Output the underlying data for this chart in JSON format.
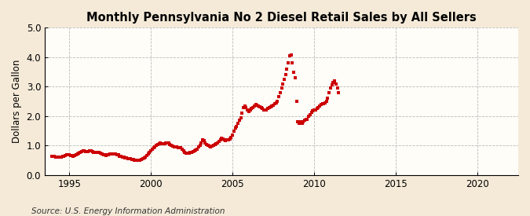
{
  "title": "Monthly Pennsylvania No 2 Diesel Retail Sales by All Sellers",
  "ylabel": "Dollars per Gallon",
  "source": "Source: U.S. Energy Information Administration",
  "xlim": [
    1993.5,
    2022.5
  ],
  "ylim": [
    0.0,
    5.0
  ],
  "xticks": [
    1995,
    2000,
    2005,
    2010,
    2015,
    2020
  ],
  "yticks": [
    0.0,
    1.0,
    2.0,
    3.0,
    4.0,
    5.0
  ],
  "background_color": "#f5ead8",
  "plot_bg_color": "#fefdf8",
  "line_color": "#cc0000",
  "marker": "s",
  "markersize": 2.8,
  "data": [
    [
      1993.917,
      0.65
    ],
    [
      1994.083,
      0.63
    ],
    [
      1994.167,
      0.62
    ],
    [
      1994.25,
      0.61
    ],
    [
      1994.333,
      0.6
    ],
    [
      1994.417,
      0.61
    ],
    [
      1994.5,
      0.62
    ],
    [
      1994.583,
      0.63
    ],
    [
      1994.667,
      0.65
    ],
    [
      1994.75,
      0.67
    ],
    [
      1994.833,
      0.7
    ],
    [
      1994.917,
      0.7
    ],
    [
      1995.0,
      0.68
    ],
    [
      1995.083,
      0.67
    ],
    [
      1995.167,
      0.66
    ],
    [
      1995.25,
      0.65
    ],
    [
      1995.333,
      0.67
    ],
    [
      1995.417,
      0.7
    ],
    [
      1995.5,
      0.73
    ],
    [
      1995.583,
      0.75
    ],
    [
      1995.667,
      0.77
    ],
    [
      1995.75,
      0.8
    ],
    [
      1995.833,
      0.82
    ],
    [
      1995.917,
      0.82
    ],
    [
      1996.0,
      0.8
    ],
    [
      1996.083,
      0.8
    ],
    [
      1996.167,
      0.8
    ],
    [
      1996.25,
      0.82
    ],
    [
      1996.333,
      0.82
    ],
    [
      1996.417,
      0.8
    ],
    [
      1996.5,
      0.78
    ],
    [
      1996.583,
      0.76
    ],
    [
      1996.667,
      0.76
    ],
    [
      1996.75,
      0.76
    ],
    [
      1996.833,
      0.76
    ],
    [
      1996.917,
      0.74
    ],
    [
      1997.0,
      0.72
    ],
    [
      1997.083,
      0.7
    ],
    [
      1997.167,
      0.68
    ],
    [
      1997.25,
      0.67
    ],
    [
      1997.333,
      0.68
    ],
    [
      1997.417,
      0.7
    ],
    [
      1997.5,
      0.72
    ],
    [
      1997.583,
      0.73
    ],
    [
      1997.667,
      0.73
    ],
    [
      1997.75,
      0.73
    ],
    [
      1997.833,
      0.72
    ],
    [
      1997.917,
      0.7
    ],
    [
      1998.0,
      0.68
    ],
    [
      1998.083,
      0.65
    ],
    [
      1998.167,
      0.63
    ],
    [
      1998.25,
      0.62
    ],
    [
      1998.333,
      0.61
    ],
    [
      1998.417,
      0.59
    ],
    [
      1998.5,
      0.58
    ],
    [
      1998.583,
      0.57
    ],
    [
      1998.667,
      0.56
    ],
    [
      1998.75,
      0.55
    ],
    [
      1998.833,
      0.53
    ],
    [
      1998.917,
      0.52
    ],
    [
      1999.0,
      0.51
    ],
    [
      1999.083,
      0.5
    ],
    [
      1999.167,
      0.5
    ],
    [
      1999.25,
      0.5
    ],
    [
      1999.333,
      0.51
    ],
    [
      1999.417,
      0.52
    ],
    [
      1999.5,
      0.55
    ],
    [
      1999.583,
      0.58
    ],
    [
      1999.667,
      0.62
    ],
    [
      1999.75,
      0.67
    ],
    [
      1999.833,
      0.73
    ],
    [
      1999.917,
      0.78
    ],
    [
      2000.0,
      0.82
    ],
    [
      2000.083,
      0.88
    ],
    [
      2000.167,
      0.93
    ],
    [
      2000.25,
      0.97
    ],
    [
      2000.333,
      1.02
    ],
    [
      2000.417,
      1.05
    ],
    [
      2000.5,
      1.07
    ],
    [
      2000.583,
      1.08
    ],
    [
      2000.667,
      1.07
    ],
    [
      2000.75,
      1.06
    ],
    [
      2000.833,
      1.07
    ],
    [
      2000.917,
      1.1
    ],
    [
      2001.0,
      1.1
    ],
    [
      2001.083,
      1.08
    ],
    [
      2001.167,
      1.05
    ],
    [
      2001.25,
      1.02
    ],
    [
      2001.333,
      0.98
    ],
    [
      2001.417,
      0.96
    ],
    [
      2001.5,
      0.95
    ],
    [
      2001.583,
      0.95
    ],
    [
      2001.667,
      0.94
    ],
    [
      2001.75,
      0.93
    ],
    [
      2001.833,
      0.92
    ],
    [
      2001.917,
      0.88
    ],
    [
      2002.0,
      0.83
    ],
    [
      2002.083,
      0.78
    ],
    [
      2002.167,
      0.75
    ],
    [
      2002.25,
      0.74
    ],
    [
      2002.333,
      0.75
    ],
    [
      2002.417,
      0.76
    ],
    [
      2002.5,
      0.78
    ],
    [
      2002.583,
      0.8
    ],
    [
      2002.667,
      0.82
    ],
    [
      2002.75,
      0.84
    ],
    [
      2002.833,
      0.88
    ],
    [
      2002.917,
      0.95
    ],
    [
      2003.0,
      1.0
    ],
    [
      2003.083,
      1.1
    ],
    [
      2003.167,
      1.2
    ],
    [
      2003.25,
      1.18
    ],
    [
      2003.333,
      1.1
    ],
    [
      2003.417,
      1.05
    ],
    [
      2003.5,
      1.0
    ],
    [
      2003.583,
      0.98
    ],
    [
      2003.667,
      0.97
    ],
    [
      2003.75,
      0.98
    ],
    [
      2003.833,
      1.0
    ],
    [
      2003.917,
      1.03
    ],
    [
      2004.0,
      1.06
    ],
    [
      2004.083,
      1.1
    ],
    [
      2004.167,
      1.15
    ],
    [
      2004.25,
      1.2
    ],
    [
      2004.333,
      1.25
    ],
    [
      2004.417,
      1.22
    ],
    [
      2004.5,
      1.2
    ],
    [
      2004.583,
      1.18
    ],
    [
      2004.667,
      1.19
    ],
    [
      2004.75,
      1.2
    ],
    [
      2004.833,
      1.23
    ],
    [
      2004.917,
      1.28
    ],
    [
      2005.0,
      1.35
    ],
    [
      2005.083,
      1.5
    ],
    [
      2005.167,
      1.6
    ],
    [
      2005.25,
      1.65
    ],
    [
      2005.333,
      1.75
    ],
    [
      2005.417,
      1.85
    ],
    [
      2005.5,
      1.95
    ],
    [
      2005.583,
      2.1
    ],
    [
      2005.667,
      2.3
    ],
    [
      2005.75,
      2.35
    ],
    [
      2005.833,
      2.3
    ],
    [
      2005.917,
      2.2
    ],
    [
      2006.0,
      2.15
    ],
    [
      2006.083,
      2.2
    ],
    [
      2006.167,
      2.25
    ],
    [
      2006.25,
      2.3
    ],
    [
      2006.333,
      2.35
    ],
    [
      2006.417,
      2.4
    ],
    [
      2006.5,
      2.38
    ],
    [
      2006.583,
      2.35
    ],
    [
      2006.667,
      2.32
    ],
    [
      2006.75,
      2.28
    ],
    [
      2006.833,
      2.25
    ],
    [
      2006.917,
      2.22
    ],
    [
      2007.0,
      2.2
    ],
    [
      2007.083,
      2.22
    ],
    [
      2007.167,
      2.25
    ],
    [
      2007.25,
      2.28
    ],
    [
      2007.333,
      2.32
    ],
    [
      2007.417,
      2.35
    ],
    [
      2007.5,
      2.38
    ],
    [
      2007.583,
      2.42
    ],
    [
      2007.667,
      2.45
    ],
    [
      2007.75,
      2.5
    ],
    [
      2007.833,
      2.65
    ],
    [
      2007.917,
      2.8
    ],
    [
      2008.0,
      2.95
    ],
    [
      2008.083,
      3.1
    ],
    [
      2008.167,
      3.25
    ],
    [
      2008.25,
      3.4
    ],
    [
      2008.333,
      3.6
    ],
    [
      2008.417,
      3.8
    ],
    [
      2008.5,
      4.05
    ],
    [
      2008.583,
      4.08
    ],
    [
      2008.667,
      3.8
    ],
    [
      2008.75,
      3.5
    ],
    [
      2008.833,
      3.3
    ],
    [
      2008.917,
      2.5
    ],
    [
      2009.0,
      1.8
    ],
    [
      2009.083,
      1.75
    ],
    [
      2009.167,
      1.8
    ],
    [
      2009.25,
      1.75
    ],
    [
      2009.333,
      1.8
    ],
    [
      2009.417,
      1.85
    ],
    [
      2009.5,
      1.88
    ],
    [
      2009.583,
      1.9
    ],
    [
      2009.667,
      2.0
    ],
    [
      2009.75,
      2.05
    ],
    [
      2009.833,
      2.12
    ],
    [
      2009.917,
      2.18
    ],
    [
      2010.0,
      2.2
    ],
    [
      2010.083,
      2.22
    ],
    [
      2010.167,
      2.25
    ],
    [
      2010.25,
      2.3
    ],
    [
      2010.333,
      2.35
    ],
    [
      2010.417,
      2.4
    ],
    [
      2010.5,
      2.42
    ],
    [
      2010.583,
      2.42
    ],
    [
      2010.667,
      2.45
    ],
    [
      2010.75,
      2.5
    ],
    [
      2010.833,
      2.6
    ],
    [
      2010.917,
      2.8
    ],
    [
      2011.0,
      2.95
    ],
    [
      2011.083,
      3.05
    ],
    [
      2011.167,
      3.15
    ],
    [
      2011.25,
      3.2
    ],
    [
      2011.333,
      3.08
    ],
    [
      2011.417,
      2.95
    ],
    [
      2011.5,
      2.8
    ]
  ]
}
